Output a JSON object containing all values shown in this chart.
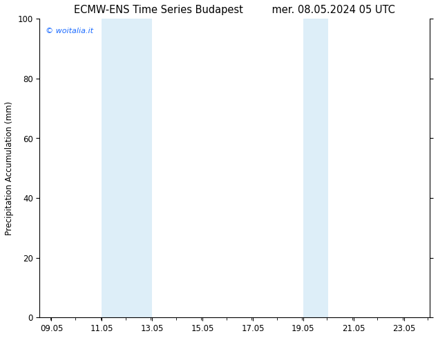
{
  "title_left": "ECMW-ENS Time Series Budapest",
  "title_right": "mer. 08.05.2024 05 UTC",
  "ylabel": "Precipitation Accumulation (mm)",
  "watermark": "© woitalia.it",
  "watermark_color": "#1a6aff",
  "xlim_start": 8.583,
  "xlim_end": 24.083,
  "ylim": [
    0,
    100
  ],
  "yticks": [
    0,
    20,
    40,
    60,
    80,
    100
  ],
  "xticks": [
    9.05,
    11.05,
    13.05,
    15.05,
    17.05,
    19.05,
    21.05,
    23.05
  ],
  "xtick_labels": [
    "09.05",
    "11.05",
    "13.05",
    "15.05",
    "17.05",
    "19.05",
    "21.05",
    "23.05"
  ],
  "shaded_regions": [
    {
      "x_start": 11.05,
      "x_end": 13.05
    },
    {
      "x_start": 19.05,
      "x_end": 20.05
    }
  ],
  "shade_color": "#ddeef8",
  "background_color": "#ffffff",
  "title_fontsize": 10.5,
  "tick_fontsize": 8.5,
  "ylabel_fontsize": 8.5
}
